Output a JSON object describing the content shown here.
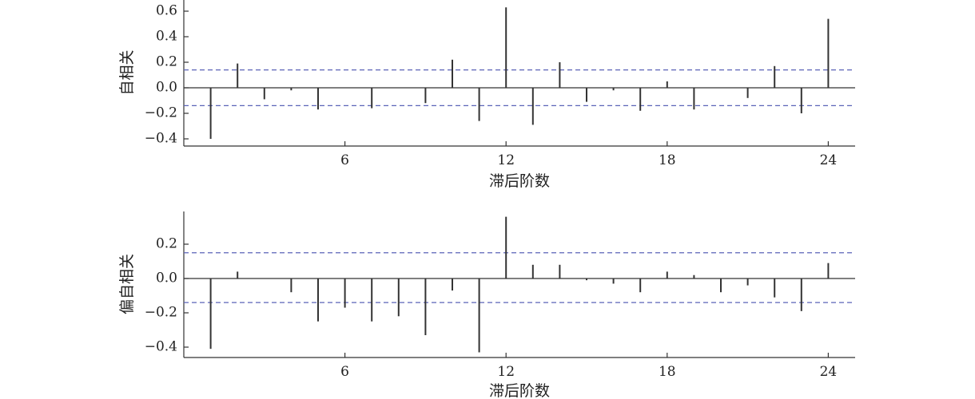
{
  "chart_data": [
    {
      "type": "bar",
      "xlabel": "滞后阶数",
      "ylabel": "自相关",
      "xlim": [
        0,
        25
      ],
      "ylim": [
        -0.45,
        0.66
      ],
      "xticks": [
        6,
        12,
        18,
        24
      ],
      "yticks": [
        0.6,
        0.4,
        0.2,
        0.0,
        -0.2,
        -0.4
      ],
      "ytick_labels": [
        "0.6",
        "0.4",
        "0.2",
        "0.0",
        "−0.2",
        "−0.4"
      ],
      "confidence_band": [
        0.14,
        -0.14
      ],
      "x": [
        1,
        2,
        3,
        4,
        5,
        6,
        7,
        8,
        9,
        10,
        11,
        12,
        13,
        14,
        15,
        16,
        17,
        18,
        19,
        20,
        21,
        22,
        23,
        24
      ],
      "values": [
        -0.4,
        0.19,
        -0.09,
        -0.02,
        -0.17,
        0.0,
        -0.16,
        0.0,
        -0.12,
        0.22,
        -0.26,
        0.63,
        -0.29,
        0.2,
        -0.11,
        -0.02,
        -0.18,
        0.05,
        -0.17,
        0.0,
        -0.08,
        0.17,
        -0.2,
        0.54
      ]
    },
    {
      "type": "bar",
      "xlabel": "滞后阶数",
      "ylabel": "偏自相关",
      "xlim": [
        0,
        25
      ],
      "ylim": [
        -0.46,
        0.39
      ],
      "xticks": [
        6,
        12,
        18,
        24
      ],
      "yticks": [
        0.2,
        0.0,
        -0.2,
        -0.4
      ],
      "ytick_labels": [
        "0.2",
        "0.0",
        "−0.2",
        "−0.4"
      ],
      "confidence_band": [
        0.15,
        -0.14
      ],
      "x": [
        1,
        2,
        3,
        4,
        5,
        6,
        7,
        8,
        9,
        10,
        11,
        12,
        13,
        14,
        15,
        16,
        17,
        18,
        19,
        20,
        21,
        22,
        23,
        24
      ],
      "values": [
        -0.41,
        0.04,
        0.0,
        -0.08,
        -0.25,
        -0.17,
        -0.25,
        -0.22,
        -0.33,
        -0.07,
        -0.43,
        0.36,
        0.08,
        0.08,
        -0.01,
        -0.03,
        -0.08,
        0.04,
        0.02,
        -0.08,
        -0.04,
        -0.11,
        -0.19,
        0.09
      ]
    }
  ]
}
